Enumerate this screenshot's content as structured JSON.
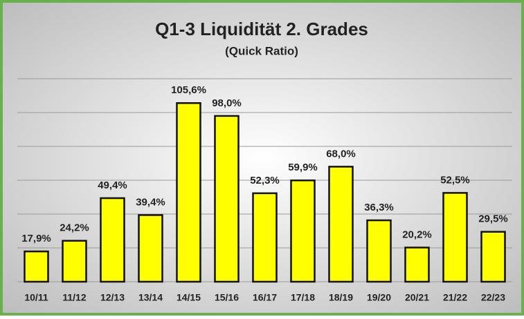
{
  "chart_data": {
    "type": "bar",
    "title": "Q1-3 Liquidität 2. Grades",
    "subtitle": "(Quick Ratio)",
    "categories": [
      "10/11",
      "11/12",
      "12/13",
      "13/14",
      "14/15",
      "15/16",
      "16/17",
      "17/18",
      "18/19",
      "19/20",
      "20/21",
      "21/22",
      "22/23"
    ],
    "values": [
      17.9,
      24.2,
      49.4,
      39.4,
      105.6,
      98.0,
      52.3,
      59.9,
      68.0,
      36.3,
      20.2,
      52.5,
      29.5
    ],
    "value_labels": [
      "17,9%",
      "24,2%",
      "49,4%",
      "39,4%",
      "105,6%",
      "98,0%",
      "52,3%",
      "59,9%",
      "68,0%",
      "36,3%",
      "20,2%",
      "52,5%",
      "29,5%"
    ],
    "color": "#ffff00",
    "ylim": [
      0,
      120
    ],
    "yticks": [
      0,
      20,
      40,
      60,
      80,
      100,
      120
    ],
    "grid": true
  }
}
